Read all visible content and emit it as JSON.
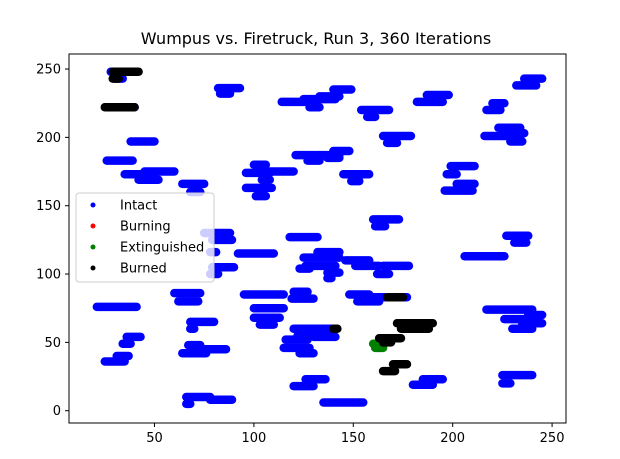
{
  "chart_data": {
    "type": "scatter",
    "title": "Wumpus vs. Firetruck, Run 3, 360 Iterations",
    "xlabel": "",
    "ylabel": "",
    "xlim": [
      7,
      257
    ],
    "ylim": [
      -9,
      261
    ],
    "xticks": [
      50,
      100,
      150,
      200,
      250
    ],
    "yticks": [
      0,
      50,
      100,
      150,
      200,
      250
    ],
    "grid": false,
    "legend_position": "center-left",
    "legend": [
      {
        "name": "Intact",
        "color": "#0000ff"
      },
      {
        "name": "Burning",
        "color": "#ff0000"
      },
      {
        "name": "Extinguished",
        "color": "#008000"
      },
      {
        "name": "Burned",
        "color": "#000000"
      }
    ],
    "series": [
      {
        "name": "Intact",
        "color": "#0000ff",
        "segments": [
          [
            21,
            41,
            76
          ],
          [
            25,
            35,
            36
          ],
          [
            31,
            37,
            40
          ],
          [
            34,
            38,
            49
          ],
          [
            36,
            43,
            54
          ],
          [
            26,
            39,
            183
          ],
          [
            31,
            40,
            222
          ],
          [
            38,
            50,
            197
          ],
          [
            35,
            48,
            173
          ],
          [
            45,
            60,
            175
          ],
          [
            42,
            52,
            169
          ],
          [
            28,
            40,
            248
          ],
          [
            30,
            34,
            243
          ],
          [
            60,
            73,
            86
          ],
          [
            62,
            72,
            80
          ],
          [
            68,
            80,
            65
          ],
          [
            68,
            70,
            60
          ],
          [
            64,
            76,
            42
          ],
          [
            67,
            73,
            48
          ],
          [
            75,
            86,
            45
          ],
          [
            66,
            68,
            5
          ],
          [
            66,
            78,
            10
          ],
          [
            78,
            89,
            8
          ],
          [
            64,
            75,
            166
          ],
          [
            68,
            73,
            160
          ],
          [
            79,
            90,
            105
          ],
          [
            78,
            82,
            100
          ],
          [
            75,
            88,
            130
          ],
          [
            79,
            89,
            125
          ],
          [
            78,
            81,
            116
          ],
          [
            82,
            93,
            236
          ],
          [
            83,
            88,
            232
          ],
          [
            92,
            110,
            115
          ],
          [
            95,
            115,
            85
          ],
          [
            100,
            115,
            75
          ],
          [
            100,
            113,
            68
          ],
          [
            103,
            110,
            63
          ],
          [
            96,
            109,
            163
          ],
          [
            101,
            106,
            157
          ],
          [
            96,
            108,
            174
          ],
          [
            104,
            108,
            169
          ],
          [
            108,
            120,
            175
          ],
          [
            100,
            106,
            180
          ],
          [
            118,
            132,
            127
          ],
          [
            120,
            127,
            87
          ],
          [
            119,
            130,
            82
          ],
          [
            115,
            128,
            46
          ],
          [
            116,
            127,
            52
          ],
          [
            120,
            140,
            60
          ],
          [
            122,
            137,
            55
          ],
          [
            114,
            126,
            226
          ],
          [
            125,
            141,
            228
          ],
          [
            128,
            133,
            222
          ],
          [
            133,
            143,
            230
          ],
          [
            140,
            149,
            235
          ],
          [
            121,
            133,
            187
          ],
          [
            127,
            133,
            183
          ],
          [
            133,
            143,
            187
          ],
          [
            140,
            148,
            190
          ],
          [
            137,
            143,
            185
          ],
          [
            123,
            128,
            104
          ],
          [
            125,
            143,
            112
          ],
          [
            126,
            141,
            106
          ],
          [
            132,
            143,
            116
          ],
          [
            137,
            143,
            101
          ],
          [
            137,
            139,
            97
          ],
          [
            120,
            130,
            18
          ],
          [
            126,
            136,
            23
          ],
          [
            135,
            155,
            6
          ],
          [
            130,
            141,
            54
          ],
          [
            123,
            130,
            42
          ],
          [
            146,
            158,
            110
          ],
          [
            151,
            163,
            106
          ],
          [
            148,
            158,
            85
          ],
          [
            152,
            163,
            80
          ],
          [
            145,
            158,
            173
          ],
          [
            149,
            153,
            168
          ],
          [
            154,
            168,
            220
          ],
          [
            157,
            161,
            215
          ],
          [
            160,
            173,
            140
          ],
          [
            161,
            166,
            135
          ],
          [
            165,
            179,
            201
          ],
          [
            167,
            172,
            196
          ],
          [
            165,
            178,
            106
          ],
          [
            160,
            177,
            83
          ],
          [
            162,
            168,
            100
          ],
          [
            180,
            190,
            19
          ],
          [
            185,
            195,
            23
          ],
          [
            182,
            195,
            226
          ],
          [
            187,
            198,
            231
          ],
          [
            196,
            210,
            161
          ],
          [
            202,
            211,
            166
          ],
          [
            199,
            211,
            179
          ],
          [
            197,
            202,
            173
          ],
          [
            206,
            226,
            113
          ],
          [
            217,
            240,
            74
          ],
          [
            226,
            236,
            67
          ],
          [
            230,
            240,
            60
          ],
          [
            235,
            245,
            64
          ],
          [
            238,
            245,
            70
          ],
          [
            225,
            240,
            26
          ],
          [
            225,
            229,
            20
          ],
          [
            227,
            238,
            128
          ],
          [
            231,
            237,
            123
          ],
          [
            217,
            224,
            220
          ],
          [
            220,
            226,
            225
          ],
          [
            216,
            230,
            201
          ],
          [
            223,
            234,
            207
          ],
          [
            226,
            236,
            203
          ],
          [
            229,
            235,
            197
          ],
          [
            232,
            242,
            238
          ],
          [
            236,
            245,
            243
          ]
        ]
      },
      {
        "name": "Burning",
        "color": "#ff0000",
        "segments": []
      },
      {
        "name": "Extinguished",
        "color": "#008000",
        "segments": [
          [
            160,
            163,
            49
          ],
          [
            161,
            165,
            46
          ]
        ]
      },
      {
        "name": "Burned",
        "color": "#000000",
        "segments": [
          [
            25,
            40,
            222
          ],
          [
            29,
            42,
            248
          ],
          [
            29,
            32,
            243
          ],
          [
            163,
            174,
            53
          ],
          [
            165,
            169,
            50
          ],
          [
            172,
            190,
            64
          ],
          [
            174,
            188,
            60
          ],
          [
            167,
            175,
            83
          ],
          [
            165,
            171,
            29
          ],
          [
            170,
            177,
            34
          ],
          [
            140,
            142,
            60
          ]
        ]
      }
    ]
  }
}
